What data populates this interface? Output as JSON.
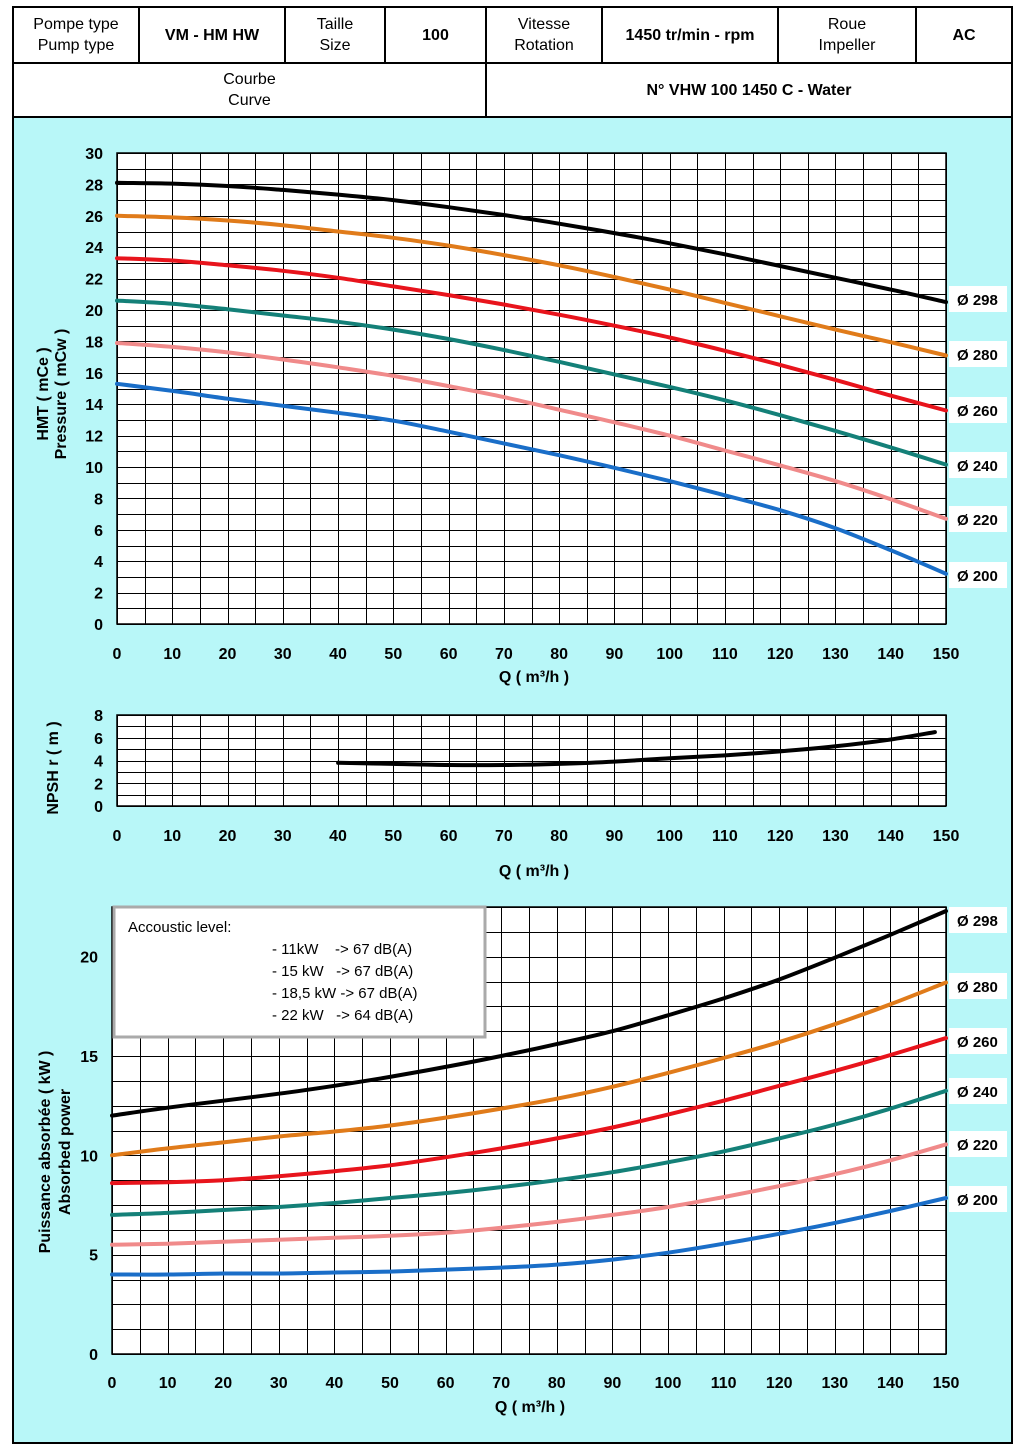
{
  "header": {
    "pump_type_fr": "Pompe type",
    "pump_type_en": "Pump type",
    "pump_type_value": "VM - HM HW",
    "size_fr": "Taille",
    "size_en": "Size",
    "size_value": "100",
    "speed_fr": "Vitesse",
    "speed_en": "Rotation",
    "speed_value": "1450 tr/min - rpm",
    "impeller_fr": "Roue",
    "impeller_en": "Impeller",
    "impeller_value": "AC",
    "curve_fr": "Courbe",
    "curve_en": "Curve",
    "curve_value": "N° VHW 100 1450 C - Water"
  },
  "colors": {
    "background": "#b8f7f8",
    "grid": "#000000",
    "d298": "#000000",
    "d280": "#e07b1a",
    "d260": "#e8141c",
    "d240": "#148078",
    "d220": "#f08a8a",
    "d200": "#1a6ec8"
  },
  "acoustic": {
    "title": "Accoustic level:",
    "lines": [
      "- 11kW    -> 67 dB(A)",
      "- 15 kW   -> 67 dB(A)",
      "- 18,5 kW -> 67 dB(A)",
      "- 22 kW   -> 64 dB(A)"
    ]
  },
  "chart_data": [
    {
      "type": "line",
      "id": "head",
      "xlabel": "Q ( m³/h )",
      "ylabel_fr": "HMT ( mCe )",
      "ylabel_en": "Pressure ( mCw )",
      "xlim": [
        0,
        150
      ],
      "ylim": [
        0,
        30
      ],
      "x_ticks": [
        0,
        10,
        20,
        30,
        40,
        50,
        60,
        70,
        80,
        90,
        100,
        110,
        120,
        130,
        140,
        150
      ],
      "y_ticks": [
        0,
        2,
        4,
        6,
        8,
        10,
        12,
        14,
        16,
        18,
        20,
        22,
        24,
        26,
        28,
        30
      ],
      "grid": true,
      "x": [
        0,
        10,
        20,
        30,
        40,
        50,
        60,
        70,
        80,
        90,
        100,
        110,
        120,
        130,
        140,
        150
      ],
      "series": [
        {
          "name": "Ø 298",
          "color": "#000000",
          "values": [
            28.1,
            28.05,
            27.9,
            27.65,
            27.35,
            27.0,
            26.55,
            26.05,
            25.5,
            24.9,
            24.25,
            23.55,
            22.8,
            22.05,
            21.3,
            20.5
          ]
        },
        {
          "name": "Ø 280",
          "color": "#e07b1a",
          "values": [
            26.0,
            25.9,
            25.7,
            25.4,
            25.0,
            24.6,
            24.1,
            23.5,
            22.85,
            22.1,
            21.3,
            20.45,
            19.6,
            18.75,
            17.95,
            17.1
          ]
        },
        {
          "name": "Ø 260",
          "color": "#e8141c",
          "values": [
            23.3,
            23.15,
            22.85,
            22.5,
            22.05,
            21.5,
            20.95,
            20.35,
            19.7,
            19.0,
            18.25,
            17.4,
            16.5,
            15.55,
            14.55,
            13.6
          ]
        },
        {
          "name": "Ø 240",
          "color": "#148078",
          "values": [
            20.6,
            20.4,
            20.05,
            19.65,
            19.25,
            18.75,
            18.15,
            17.45,
            16.7,
            15.9,
            15.1,
            14.25,
            13.3,
            12.3,
            11.25,
            10.15
          ]
        },
        {
          "name": "Ø 220",
          "color": "#f08a8a",
          "values": [
            17.9,
            17.65,
            17.3,
            16.85,
            16.35,
            15.8,
            15.15,
            14.45,
            13.65,
            12.85,
            12.0,
            11.05,
            10.1,
            9.1,
            7.95,
            6.7
          ]
        },
        {
          "name": "Ø 200",
          "color": "#1a6ec8",
          "values": [
            15.3,
            14.85,
            14.35,
            13.9,
            13.45,
            12.95,
            12.25,
            11.5,
            10.75,
            9.95,
            9.1,
            8.2,
            7.25,
            6.1,
            4.7,
            3.2
          ]
        }
      ]
    },
    {
      "type": "line",
      "id": "npsh",
      "xlabel": "Q ( m³/h )",
      "ylabel": "NPSH r ( m )",
      "xlim": [
        0,
        150
      ],
      "ylim": [
        0,
        8
      ],
      "x_ticks": [
        0,
        10,
        20,
        30,
        40,
        50,
        60,
        70,
        80,
        90,
        100,
        110,
        120,
        130,
        140,
        150
      ],
      "y_ticks": [
        0,
        2,
        4,
        6,
        8
      ],
      "grid": true,
      "x": [
        40,
        50,
        60,
        70,
        80,
        90,
        100,
        110,
        120,
        130,
        140,
        148
      ],
      "series": [
        {
          "name": "NPSH r",
          "color": "#000000",
          "values": [
            3.8,
            3.7,
            3.6,
            3.6,
            3.7,
            3.9,
            4.2,
            4.45,
            4.8,
            5.25,
            5.85,
            6.5
          ]
        }
      ]
    },
    {
      "type": "line",
      "id": "power",
      "xlabel": "Q ( m³/h )",
      "ylabel_fr": "Puissance absorbée ( kW )",
      "ylabel_en": "Absorbed power",
      "xlim": [
        0,
        150
      ],
      "ylim": [
        0,
        22.5
      ],
      "x_ticks": [
        0,
        10,
        20,
        30,
        40,
        50,
        60,
        70,
        80,
        90,
        100,
        110,
        120,
        130,
        140,
        150
      ],
      "y_ticks": [
        0,
        5,
        10,
        15,
        20
      ],
      "grid": true,
      "x": [
        0,
        10,
        20,
        30,
        40,
        50,
        60,
        70,
        80,
        90,
        100,
        110,
        120,
        130,
        140,
        150
      ],
      "series": [
        {
          "name": "Ø 298",
          "color": "#000000",
          "values": [
            12.0,
            12.4,
            12.75,
            13.1,
            13.5,
            13.95,
            14.45,
            15.0,
            15.6,
            16.25,
            17.05,
            17.9,
            18.85,
            19.95,
            21.1,
            22.3
          ]
        },
        {
          "name": "Ø 280",
          "color": "#e07b1a",
          "values": [
            10.0,
            10.35,
            10.65,
            10.95,
            11.2,
            11.5,
            11.9,
            12.35,
            12.85,
            13.45,
            14.15,
            14.9,
            15.7,
            16.6,
            17.6,
            18.7
          ]
        },
        {
          "name": "Ø 260",
          "color": "#e8141c",
          "values": [
            8.6,
            8.65,
            8.75,
            8.95,
            9.2,
            9.5,
            9.9,
            10.35,
            10.85,
            11.4,
            12.05,
            12.75,
            13.5,
            14.25,
            15.05,
            15.9
          ]
        },
        {
          "name": "Ø 240",
          "color": "#148078",
          "values": [
            7.0,
            7.1,
            7.25,
            7.4,
            7.6,
            7.85,
            8.1,
            8.4,
            8.75,
            9.15,
            9.65,
            10.2,
            10.85,
            11.55,
            12.35,
            13.25
          ]
        },
        {
          "name": "Ø 220",
          "color": "#f08a8a",
          "values": [
            5.5,
            5.55,
            5.65,
            5.75,
            5.85,
            5.95,
            6.1,
            6.35,
            6.65,
            7.0,
            7.4,
            7.9,
            8.45,
            9.05,
            9.75,
            10.55
          ]
        },
        {
          "name": "Ø 200",
          "color": "#1a6ec8",
          "values": [
            4.0,
            4.0,
            4.05,
            4.05,
            4.1,
            4.15,
            4.25,
            4.35,
            4.5,
            4.75,
            5.1,
            5.55,
            6.05,
            6.6,
            7.2,
            7.85
          ]
        }
      ]
    }
  ]
}
